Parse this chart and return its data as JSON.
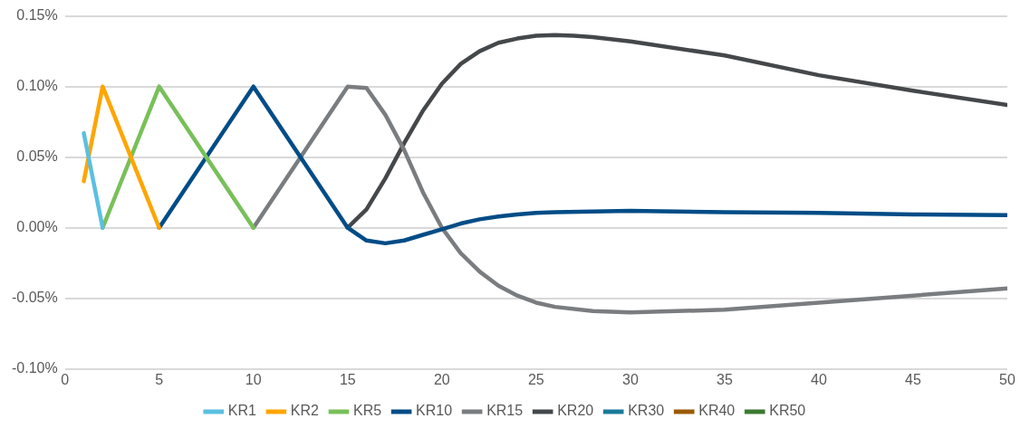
{
  "chart_data": {
    "type": "line",
    "xlim": [
      0,
      50
    ],
    "xticks": [
      0,
      5,
      10,
      15,
      20,
      25,
      30,
      35,
      40,
      45,
      50
    ],
    "ylim": [
      -0.1,
      0.15
    ],
    "yticks": [
      {
        "value": -0.1,
        "label": "-0.10%"
      },
      {
        "value": -0.05,
        "label": "-0.05%"
      },
      {
        "value": 0,
        "label": "0.00%"
      },
      {
        "value": 0.05,
        "label": "0.05%"
      },
      {
        "value": 0.1,
        "label": "0.10%"
      },
      {
        "value": 0.15,
        "label": "0.15%"
      }
    ],
    "grid": "y",
    "legend": "bottom",
    "marker": "none",
    "line_style": "solid",
    "series": [
      {
        "name": "KR1",
        "color": "#5bc0e0",
        "x": [
          1,
          2
        ],
        "values": [
          0.067,
          0
        ]
      },
      {
        "name": "KR2",
        "color": "#ffa500",
        "x": [
          1,
          2,
          5
        ],
        "values": [
          0.033,
          0.1,
          0
        ]
      },
      {
        "name": "KR5",
        "color": "#78c05a",
        "x": [
          2,
          5,
          10
        ],
        "values": [
          0,
          0.1,
          0
        ]
      },
      {
        "name": "KR10",
        "color": "#004c86",
        "x": [
          5,
          10,
          15,
          16,
          17,
          18,
          19,
          20,
          21,
          22,
          23,
          24,
          25,
          26,
          28,
          30,
          35,
          40,
          45,
          50
        ],
        "values": [
          0,
          0.1,
          0,
          -0.009,
          -0.011,
          -0.009,
          -0.005,
          -0.001,
          0.003,
          0.006,
          0.008,
          0.0095,
          0.0105,
          0.011,
          0.0115,
          0.012,
          0.011,
          0.0105,
          0.0095,
          0.009
        ]
      },
      {
        "name": "KR15",
        "color": "#7a7d80",
        "x": [
          10,
          15,
          16,
          17,
          18,
          19,
          20,
          21,
          22,
          23,
          24,
          25,
          26,
          28,
          30,
          35,
          40,
          45,
          50
        ],
        "values": [
          0,
          0.1,
          0.099,
          0.08,
          0.055,
          0.025,
          0,
          -0.018,
          -0.031,
          -0.041,
          -0.048,
          -0.053,
          -0.056,
          -0.059,
          -0.06,
          -0.058,
          -0.053,
          -0.048,
          -0.043
        ]
      },
      {
        "name": "KR20",
        "color": "#44484b",
        "x": [
          15,
          16,
          17,
          18,
          19,
          20,
          21,
          22,
          23,
          24,
          25,
          26,
          27,
          28,
          30,
          35,
          40,
          45,
          50
        ],
        "values": [
          0,
          0.013,
          0.035,
          0.06,
          0.083,
          0.102,
          0.116,
          0.125,
          0.131,
          0.134,
          0.136,
          0.1365,
          0.136,
          0.135,
          0.132,
          0.122,
          0.108,
          0.097,
          0.087
        ]
      },
      {
        "name": "KR30",
        "color": "#1a7a9a"
      },
      {
        "name": "KR40",
        "color": "#9a5a00"
      },
      {
        "name": "KR50",
        "color": "#3a7a30"
      }
    ]
  }
}
